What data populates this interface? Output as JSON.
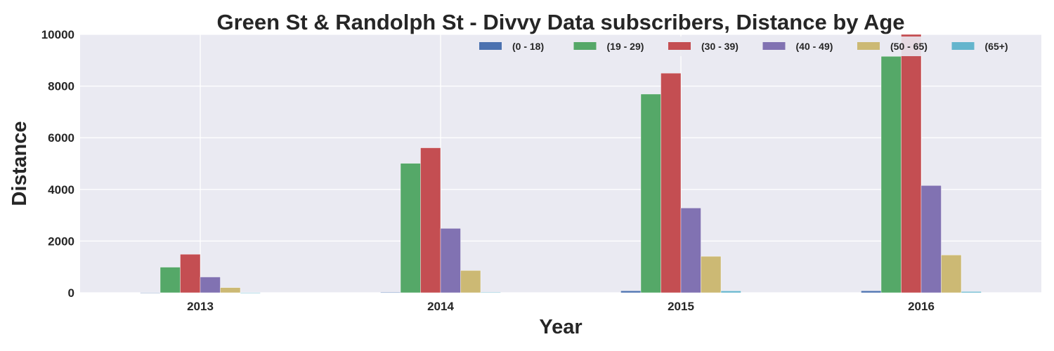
{
  "chart_data": {
    "type": "bar",
    "title": "Green St & Randolph St - Divvy Data subscribers, Distance by Age",
    "xlabel": "Year",
    "ylabel": "Distance",
    "categories": [
      "2013",
      "2014",
      "2015",
      "2016"
    ],
    "ylim": [
      0,
      10000
    ],
    "yticks": [
      0,
      2000,
      4000,
      6000,
      8000,
      10000
    ],
    "grid": true,
    "legend_position": "top-right",
    "series": [
      {
        "name": "(0 - 18)",
        "color": "#4c72b0",
        "values": [
          8,
          15,
          75,
          75
        ]
      },
      {
        "name": "(19 - 29)",
        "color": "#55a868",
        "values": [
          990,
          5010,
          7690,
          9150
        ]
      },
      {
        "name": "(30 - 39)",
        "color": "#c44e52",
        "values": [
          1490,
          5610,
          8500,
          10000
        ]
      },
      {
        "name": "(40 - 49)",
        "color": "#8172b2",
        "values": [
          610,
          2490,
          3280,
          4150
        ]
      },
      {
        "name": "(50 - 65)",
        "color": "#ccb974",
        "values": [
          200,
          860,
          1410,
          1460
        ]
      },
      {
        "name": "(65+)",
        "color": "#64b5cd",
        "values": [
          5,
          15,
          70,
          45
        ]
      }
    ]
  }
}
